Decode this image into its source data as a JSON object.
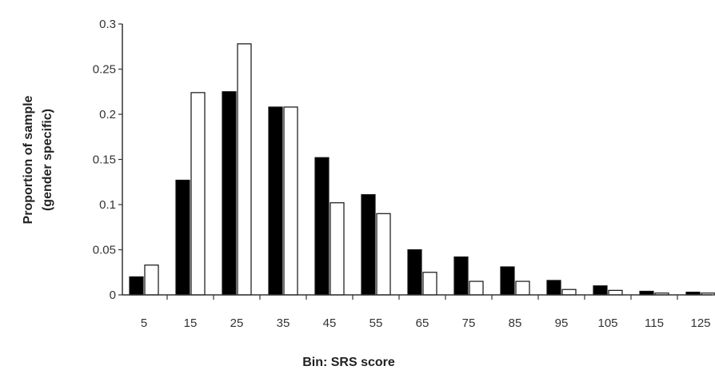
{
  "chart_data": {
    "type": "bar",
    "title": "",
    "xlabel": "Bin: SRS score",
    "ylabel_lines": [
      "Proportion of sample",
      "(gender specific)"
    ],
    "categories": [
      "5",
      "15",
      "25",
      "35",
      "45",
      "55",
      "65",
      "75",
      "85",
      "95",
      "105",
      "115",
      "125"
    ],
    "series": [
      {
        "values": [
          0.02,
          0.127,
          0.225,
          0.208,
          0.152,
          0.111,
          0.05,
          0.042,
          0.031,
          0.016,
          0.01,
          0.004,
          0.003
        ],
        "fill": "#000000"
      },
      {
        "values": [
          0.033,
          0.224,
          0.278,
          0.208,
          0.102,
          0.09,
          0.025,
          0.015,
          0.015,
          0.006,
          0.005,
          0.002,
          0.002
        ],
        "fill": "#ffffff"
      }
    ],
    "ylim": [
      0,
      0.3
    ],
    "yticks": [
      "0",
      "0.05",
      "0.1",
      "0.15",
      "0.2",
      "0.25",
      "0.3"
    ],
    "grid": false,
    "legend": "none"
  }
}
